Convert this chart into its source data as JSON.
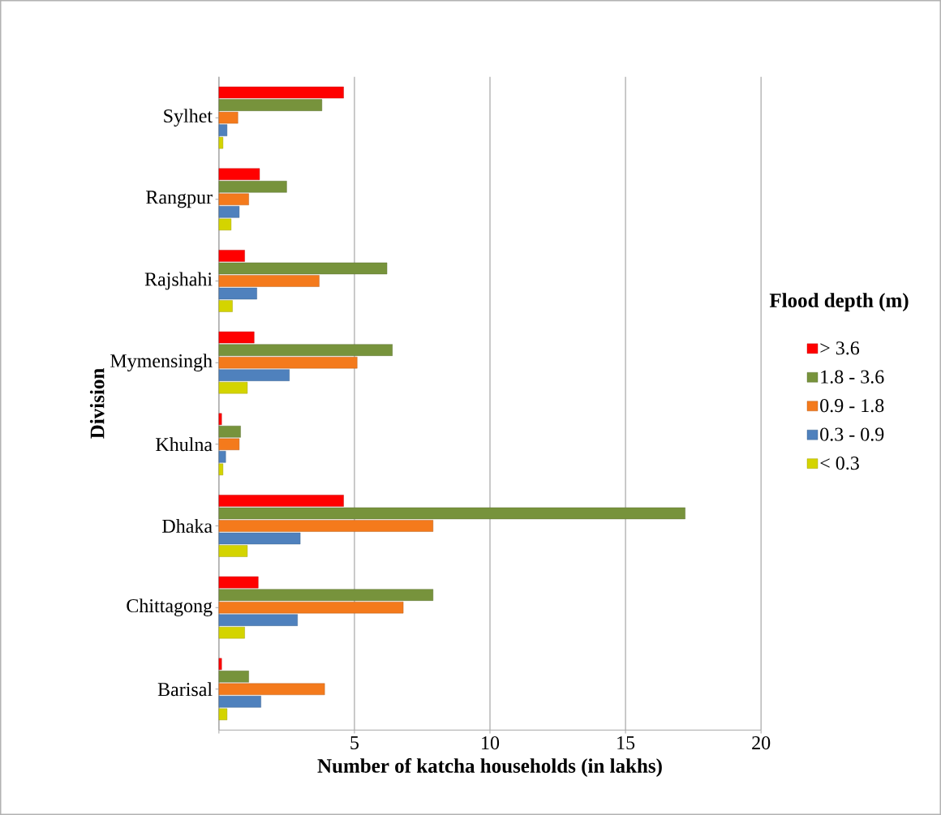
{
  "chart_data": {
    "type": "bar",
    "orientation": "horizontal",
    "xlabel": "Number of katcha households (in lakhs)",
    "ylabel": "Division",
    "legend_title": "Flood depth (m)",
    "categories": [
      "Sylhet",
      "Rangpur",
      "Rajshahi",
      "Mymensingh",
      "Khulna",
      "Dhaka",
      "Chittagong",
      "Barisal"
    ],
    "series": [
      {
        "name": "> 3.6",
        "color": "#ff0000",
        "values": [
          4.6,
          1.5,
          0.95,
          1.3,
          0.1,
          4.6,
          1.45,
          0.1
        ]
      },
      {
        "name": "1.8 - 3.6",
        "color": "#77933c",
        "values": [
          3.8,
          2.5,
          6.2,
          6.4,
          0.8,
          17.2,
          7.9,
          1.1
        ]
      },
      {
        "name": "0.9 - 1.8",
        "color": "#f47a1c",
        "values": [
          0.7,
          1.1,
          3.7,
          5.1,
          0.75,
          7.9,
          6.8,
          3.9
        ]
      },
      {
        "name": "0.3 - 0.9",
        "color": "#4f81bd",
        "values": [
          0.3,
          0.75,
          1.4,
          2.6,
          0.25,
          3.0,
          2.9,
          1.55
        ]
      },
      {
        "name": "< 0.3",
        "color": "#d4d400",
        "values": [
          0.15,
          0.45,
          0.5,
          1.05,
          0.15,
          1.05,
          0.95,
          0.3
        ]
      }
    ],
    "xlim": [
      0,
      20
    ],
    "xticks": [
      {
        "value": 0,
        "label": null
      },
      5,
      10,
      15,
      20
    ],
    "grid": "x",
    "legend": "right"
  }
}
